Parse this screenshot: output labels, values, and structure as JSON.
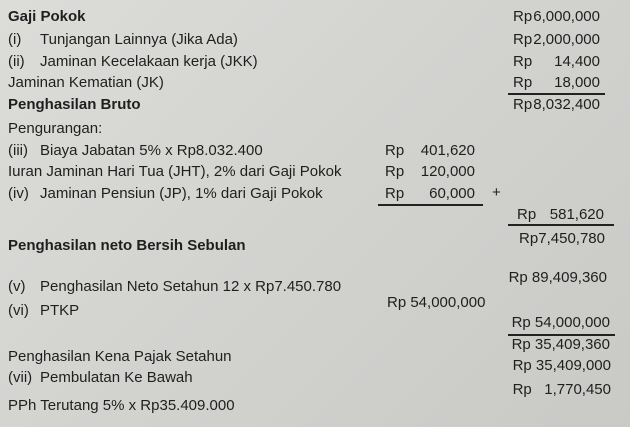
{
  "rows": {
    "gaji_pokok": {
      "label": "Gaji Pokok",
      "currency": "Rp",
      "value": "6,000,000"
    },
    "tunjangan": {
      "num": "(i)",
      "label": "Tunjangan Lainnya (Jika Ada)",
      "currency": "Rp",
      "value": "2,000,000"
    },
    "jkk": {
      "num": "(ii)",
      "label": "Jaminan Kecelakaan kerja (JKK)",
      "currency": "Rp",
      "value": "14,400"
    },
    "jk": {
      "label": "Jaminan Kematian (JK)",
      "currency": "Rp",
      "value": "18,000"
    },
    "bruto": {
      "label": "Penghasilan Bruto",
      "currency": "Rp",
      "value": "8,032,400"
    },
    "pengurangan": {
      "label": "Pengurangan:"
    },
    "biaya_jabatan": {
      "num": "(iii)",
      "label": "Biaya Jabatan 5% x Rp8.032.400",
      "currency": "Rp",
      "value": "401,620"
    },
    "jht": {
      "label": "Iuran Jaminan Hari Tua (JHT), 2% dari Gaji Pokok",
      "currency": "Rp",
      "value": "120,000"
    },
    "jp": {
      "num": "(iv)",
      "label": "Jaminan Pensiun (JP), 1% dari Gaji Pokok",
      "currency": "Rp",
      "value": "60,000",
      "operator": "+"
    },
    "total_pengurangan": {
      "currency": "Rp",
      "value": "581,620"
    },
    "neto_bulan": {
      "label": "Penghasilan neto Bersih Sebulan",
      "currency": "Rp",
      "value": "7,450,780"
    },
    "neto_tahun": {
      "num": "(v)",
      "label": "Penghasilan Neto Setahun 12 x Rp7.450.780",
      "value": "Rp 89,409,360"
    },
    "ptkp": {
      "num": "(vi)",
      "label": "PTKP",
      "value_mid": "Rp 54,000,000",
      "value": "Rp 54,000,000"
    },
    "pkp_raw": {
      "value": "Rp 35,409,360"
    },
    "pkp": {
      "label": "Penghasilan Kena Pajak Setahun",
      "value": "Rp 35,409,000"
    },
    "pembulatan": {
      "num": "(vii)",
      "label": "Pembulatan Ke Bawah",
      "value": "Rp   1,770,450"
    },
    "pph": {
      "label": "PPh Terutang 5% x Rp35.409.000"
    }
  }
}
